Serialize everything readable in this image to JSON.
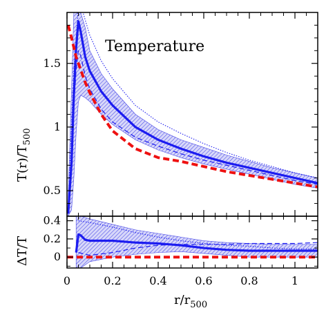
{
  "chart_data": [
    {
      "type": "line",
      "panel": "top",
      "annotation": "Temperature",
      "ylabel_main": "T(r)/T",
      "ylabel_sub": "500",
      "xlim": [
        0,
        1.1
      ],
      "ylim": [
        0.3,
        1.9
      ],
      "xticks": [
        0,
        0.2,
        0.4,
        0.6,
        0.8,
        1
      ],
      "yticks": [
        0.5,
        1,
        1.5
      ],
      "ytick_labels": [
        "0.5",
        "1",
        "1.5"
      ],
      "grid": false,
      "series": [
        {
          "role": "mean",
          "style": "solid-thick",
          "color": "#1c1cf0",
          "x": [
            0.005,
            0.02,
            0.03,
            0.04,
            0.05,
            0.06,
            0.08,
            0.1,
            0.15,
            0.2,
            0.3,
            0.4,
            0.5,
            0.6,
            0.7,
            0.8,
            0.9,
            1.0,
            1.1
          ],
          "y": [
            0.32,
            0.72,
            1.25,
            1.62,
            1.83,
            1.75,
            1.55,
            1.44,
            1.28,
            1.17,
            1.0,
            0.9,
            0.83,
            0.77,
            0.72,
            0.68,
            0.64,
            0.6,
            0.56
          ]
        },
        {
          "role": "median",
          "style": "dashed-thin",
          "color": "#1c1cf0",
          "x": [
            0.005,
            0.02,
            0.03,
            0.04,
            0.05,
            0.06,
            0.08,
            0.1,
            0.15,
            0.2,
            0.3,
            0.4,
            0.5,
            0.6,
            0.7,
            0.8,
            0.9,
            1.0,
            1.1
          ],
          "y": [
            0.32,
            0.7,
            1.15,
            1.45,
            1.6,
            1.56,
            1.4,
            1.3,
            1.14,
            1.04,
            0.92,
            0.85,
            0.79,
            0.74,
            0.7,
            0.66,
            0.62,
            0.58,
            0.55
          ]
        },
        {
          "role": "upper-bound",
          "style": "dotted-thin",
          "color": "#1c1cf0",
          "x": [
            0.01,
            0.03,
            0.05,
            0.07,
            0.1,
            0.15,
            0.2,
            0.3,
            0.4,
            0.5,
            0.6,
            0.7,
            0.8,
            0.9,
            1.0,
            1.1
          ],
          "y": [
            0.6,
            1.45,
            1.95,
            1.9,
            1.72,
            1.52,
            1.38,
            1.17,
            1.04,
            0.95,
            0.87,
            0.8,
            0.74,
            0.69,
            0.64,
            0.6
          ]
        },
        {
          "role": "reference",
          "style": "dashed-thick",
          "color": "#ee1111",
          "x": [
            0.005,
            0.02,
            0.04,
            0.06,
            0.08,
            0.1,
            0.15,
            0.2,
            0.3,
            0.4,
            0.5,
            0.6,
            0.7,
            0.8,
            0.9,
            1.0,
            1.1
          ],
          "y": [
            1.8,
            1.7,
            1.55,
            1.45,
            1.35,
            1.27,
            1.1,
            0.97,
            0.83,
            0.76,
            0.73,
            0.69,
            0.65,
            0.62,
            0.59,
            0.56,
            0.53
          ]
        }
      ],
      "band": {
        "color": "#4848e6",
        "x": [
          0.005,
          0.02,
          0.03,
          0.04,
          0.05,
          0.06,
          0.08,
          0.1,
          0.15,
          0.2,
          0.3,
          0.4,
          0.5,
          0.6,
          0.7,
          0.8,
          0.9,
          1.0,
          1.1
        ],
        "upper": [
          0.45,
          1.3,
          1.9,
          1.9,
          1.9,
          1.9,
          1.78,
          1.6,
          1.42,
          1.3,
          1.1,
          0.98,
          0.9,
          0.84,
          0.78,
          0.73,
          0.68,
          0.64,
          0.6
        ],
        "lower": [
          0.3,
          0.35,
          0.6,
          0.95,
          1.2,
          1.25,
          1.23,
          1.2,
          1.1,
          1.02,
          0.9,
          0.82,
          0.76,
          0.71,
          0.67,
          0.63,
          0.59,
          0.55,
          0.52
        ]
      }
    },
    {
      "type": "line",
      "panel": "bottom",
      "ylabel": "ΔT/T",
      "xlabel_main": "r/r",
      "xlabel_sub": "500",
      "xlim": [
        0,
        1.1
      ],
      "ylim": [
        -0.12,
        0.45
      ],
      "xticks": [
        0,
        0.2,
        0.4,
        0.6,
        0.8,
        1
      ],
      "xtick_labels": [
        "0",
        "0.2",
        "0.4",
        "0.6",
        "0.8",
        "1"
      ],
      "yticks": [
        0,
        0.2,
        0.4
      ],
      "ytick_labels": [
        "0",
        "0.2",
        "0.4"
      ],
      "grid": false,
      "series": [
        {
          "role": "mean",
          "style": "solid-thick",
          "color": "#1c1cf0",
          "x": [
            0.04,
            0.05,
            0.06,
            0.08,
            0.1,
            0.15,
            0.2,
            0.3,
            0.4,
            0.5,
            0.6,
            0.7,
            0.8,
            0.9,
            1.0,
            1.1
          ],
          "y": [
            0.05,
            0.25,
            0.24,
            0.19,
            0.18,
            0.18,
            0.18,
            0.16,
            0.15,
            0.13,
            0.1,
            0.08,
            0.07,
            0.07,
            0.07,
            0.07
          ]
        },
        {
          "role": "dashed",
          "style": "dashed-thin",
          "color": "#1c1cf0",
          "x": [
            0.05,
            0.1,
            0.2,
            0.3,
            0.4,
            0.5,
            0.6,
            0.7,
            0.8,
            0.9,
            1.0,
            1.1
          ],
          "y": [
            0.05,
            0.02,
            0.05,
            0.1,
            0.13,
            0.14,
            0.14,
            0.14,
            0.15,
            0.15,
            0.15,
            0.16
          ]
        },
        {
          "role": "dotted",
          "style": "dotted-thin",
          "color": "#1c1cf0",
          "x": [
            0.05,
            0.1,
            0.2,
            0.3,
            0.4,
            0.5,
            0.6,
            0.7,
            0.8,
            0.9,
            1.0,
            1.1
          ],
          "y": [
            0.4,
            0.38,
            0.33,
            0.27,
            0.22,
            0.18,
            0.15,
            0.13,
            0.12,
            0.1,
            0.09,
            0.09
          ]
        },
        {
          "role": "reference",
          "style": "dashed-thick",
          "color": "#ee1111",
          "x": [
            0.0,
            0.2,
            0.4,
            0.6,
            0.8,
            1.0,
            1.1
          ],
          "y": [
            0.0,
            0.0,
            0.0,
            0.0,
            0.0,
            0.0,
            0.0
          ]
        }
      ],
      "band": {
        "color": "#4848e6",
        "x": [
          0.04,
          0.06,
          0.1,
          0.2,
          0.3,
          0.4,
          0.5,
          0.6,
          0.7,
          0.8,
          0.9,
          1.0,
          1.1
        ],
        "upper": [
          0.45,
          0.45,
          0.42,
          0.36,
          0.3,
          0.26,
          0.22,
          0.18,
          0.16,
          0.15,
          0.14,
          0.14,
          0.14
        ],
        "lower": [
          -0.12,
          -0.12,
          -0.05,
          0.0,
          0.03,
          0.05,
          0.06,
          0.04,
          0.02,
          0.0,
          0.0,
          0.0,
          0.0
        ]
      }
    }
  ]
}
